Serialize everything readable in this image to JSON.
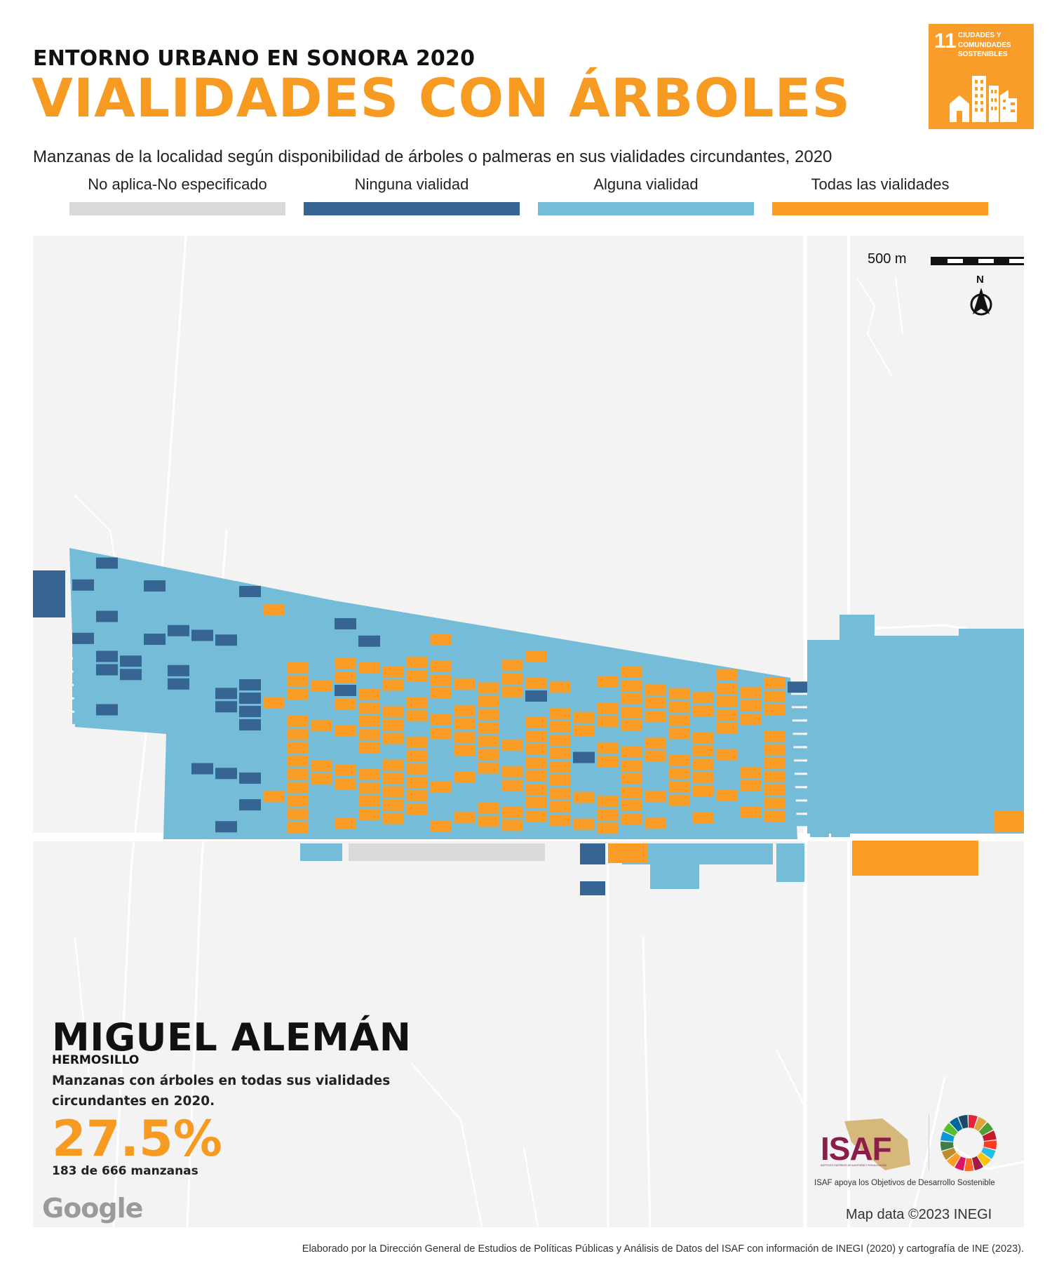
{
  "header": {
    "kicker": "ENTORNO URBANO EN SONORA 2020",
    "title": "VIALIDADES CON ÁRBOLES",
    "subtitle": "Manzanas de la localidad según disponibilidad de árboles o palmeras en sus vialidades circundantes, 2020"
  },
  "sdg_badge": {
    "number": "11",
    "text": "CIUDADES Y COMUNIDADES SOSTENIBLES",
    "color": "#f89d2a"
  },
  "legend": [
    {
      "label": "No aplica-No especificado",
      "color": "#d9d9d9"
    },
    {
      "label": "Ninguna vialidad",
      "color": "#366593"
    },
    {
      "label": "Alguna vialidad",
      "color": "#74bcd7"
    },
    {
      "label": "Todas las vialidades",
      "color": "#f99d27"
    }
  ],
  "map": {
    "scale_label": "500 m",
    "north_label": "N",
    "attribution": "Map data ©2023 INEGI",
    "google_logo": "Google"
  },
  "locality": {
    "name": "MIGUEL ALEMÁN",
    "municipality": "HERMOSILLO",
    "description": "Manzanas con árboles en todas sus vialidades circundantes en 2020.",
    "percentage": "27.5%",
    "count_text": "183 de 666 manzanas"
  },
  "isaf": {
    "logo_text": "ISAF",
    "logo_subtext": "INSTITUTO SUPERIOR DE AUDITORÍA Y FISCALIZACIÓN",
    "tagline": "ISAF apoya los Objetivos de Desarrollo Sostenible"
  },
  "footer": {
    "credit": "Elaborado por la Dirección General de Estudios de Políticas Públicas y Análisis de Datos del ISAF con información de INEGI (2020) y cartografía de INE (2023)."
  }
}
